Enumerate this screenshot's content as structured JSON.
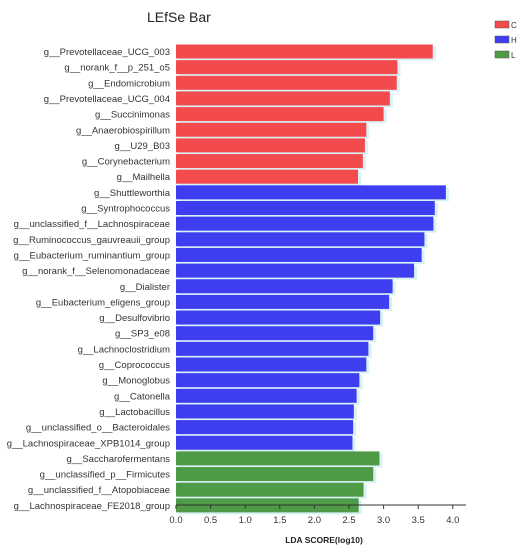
{
  "chart_data": {
    "type": "bar",
    "orientation": "horizontal",
    "title": "LEfSe Bar",
    "xlabel": "LDA SCORE(log10)",
    "ylabel": "",
    "xlim": [
      0,
      4.2
    ],
    "xticks": [
      "0.0",
      "0.5",
      "1.0",
      "1.5",
      "2.0",
      "2.5",
      "3.0",
      "3.5",
      "4.0"
    ],
    "grid": false,
    "legend_position": "top-right",
    "colors": {
      "C": "#f34a4e",
      "H": "#3e3ef0",
      "L": "#4e9a46"
    },
    "legend": [
      {
        "name": "C",
        "color": "#f34a4e"
      },
      {
        "name": "H",
        "color": "#3e3ef0"
      },
      {
        "name": "L",
        "color": "#4e9a46"
      }
    ],
    "bars": [
      {
        "label": "g__Prevotellaceae_UCG_003",
        "value": 3.71,
        "group": "C"
      },
      {
        "label": "g__norank_f__p_251_o5",
        "value": 3.2,
        "group": "C"
      },
      {
        "label": "g__Endomicrobium",
        "value": 3.19,
        "group": "C"
      },
      {
        "label": "g__Prevotellaceae_UCG_004",
        "value": 3.09,
        "group": "C"
      },
      {
        "label": "g__Succinimonas",
        "value": 3.0,
        "group": "C"
      },
      {
        "label": "g__Anaerobiospirillum",
        "value": 2.75,
        "group": "C"
      },
      {
        "label": "g__U29_B03",
        "value": 2.73,
        "group": "C"
      },
      {
        "label": "g__Corynebacterium",
        "value": 2.7,
        "group": "C"
      },
      {
        "label": "g__Mailhella",
        "value": 2.63,
        "group": "C"
      },
      {
        "label": "g__Shuttleworthia",
        "value": 3.9,
        "group": "H"
      },
      {
        "label": "g__Syntrophococcus",
        "value": 3.74,
        "group": "H"
      },
      {
        "label": "g__unclassified_f__Lachnospiraceae",
        "value": 3.72,
        "group": "H"
      },
      {
        "label": "g__Ruminococcus_gauvreauii_group",
        "value": 3.59,
        "group": "H"
      },
      {
        "label": "g__Eubacterium_ruminantium_group",
        "value": 3.55,
        "group": "H"
      },
      {
        "label": "g__norank_f__Selenomonadaceae",
        "value": 3.44,
        "group": "H"
      },
      {
        "label": "g__Dialister",
        "value": 3.13,
        "group": "H"
      },
      {
        "label": "g__Eubacterium_eligens_group",
        "value": 3.08,
        "group": "H"
      },
      {
        "label": "g__Desulfovibrio",
        "value": 2.95,
        "group": "H"
      },
      {
        "label": "g__SP3_e08",
        "value": 2.85,
        "group": "H"
      },
      {
        "label": "g__Lachnoclostridium",
        "value": 2.78,
        "group": "H"
      },
      {
        "label": "g__Coprococcus",
        "value": 2.75,
        "group": "H"
      },
      {
        "label": "g__Monoglobus",
        "value": 2.65,
        "group": "H"
      },
      {
        "label": "g__Catonella",
        "value": 2.61,
        "group": "H"
      },
      {
        "label": "g__Lactobacillus",
        "value": 2.57,
        "group": "H"
      },
      {
        "label": "g__unclassified_o__Bacteroidales",
        "value": 2.56,
        "group": "H"
      },
      {
        "label": "g__Lachnospiraceae_XPB1014_group",
        "value": 2.55,
        "group": "H"
      },
      {
        "label": "g__Saccharofermentans",
        "value": 2.94,
        "group": "L"
      },
      {
        "label": "g__unclassified_p__Firmicutes",
        "value": 2.85,
        "group": "L"
      },
      {
        "label": "g__unclassified_f__Atopobiaceae",
        "value": 2.71,
        "group": "L"
      },
      {
        "label": "g__Lachnospiraceae_FE2018_group",
        "value": 2.64,
        "group": "L"
      }
    ]
  }
}
